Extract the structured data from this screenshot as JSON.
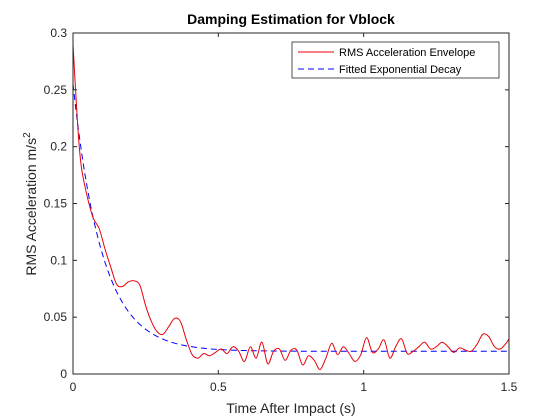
{
  "chart_data": {
    "type": "line",
    "title": "Damping Estimation for Vblock",
    "xlabel": "Time After Impact (s)",
    "ylabel": "RMS Acceleration m/s",
    "ylabel_superscript": "2",
    "xlim": [
      0,
      1.5
    ],
    "ylim": [
      0,
      0.3
    ],
    "xticks": [
      0,
      0.5,
      1,
      1.5
    ],
    "xtick_labels": [
      "0",
      "0.5",
      "1",
      "1.5"
    ],
    "yticks": [
      0,
      0.05,
      0.1,
      0.15,
      0.2,
      0.25,
      0.3
    ],
    "ytick_labels": [
      "0",
      "0.05",
      "0.1",
      "0.15",
      "0.2",
      "0.25",
      "0.3"
    ],
    "grid": false,
    "legend_position": "top-right",
    "series": [
      {
        "name": "RMS Acceleration Envelope",
        "color": "#e8000b",
        "style": "solid",
        "x": [
          0,
          0.01,
          0.02,
          0.03,
          0.05,
          0.07,
          0.09,
          0.11,
          0.13,
          0.15,
          0.17,
          0.19,
          0.21,
          0.23,
          0.25,
          0.27,
          0.29,
          0.31,
          0.33,
          0.35,
          0.37,
          0.39,
          0.41,
          0.43,
          0.45,
          0.47,
          0.49,
          0.51,
          0.53,
          0.55,
          0.57,
          0.59,
          0.61,
          0.63,
          0.65,
          0.67,
          0.69,
          0.71,
          0.73,
          0.75,
          0.77,
          0.79,
          0.81,
          0.83,
          0.85,
          0.87,
          0.89,
          0.91,
          0.93,
          0.95,
          0.97,
          0.99,
          1.01,
          1.03,
          1.05,
          1.07,
          1.09,
          1.11,
          1.13,
          1.15,
          1.17,
          1.19,
          1.21,
          1.23,
          1.25,
          1.27,
          1.29,
          1.31,
          1.33,
          1.35,
          1.37,
          1.39,
          1.41,
          1.43,
          1.45,
          1.47,
          1.49,
          1.5
        ],
        "y": [
          0.29,
          0.245,
          0.205,
          0.18,
          0.155,
          0.137,
          0.128,
          0.11,
          0.094,
          0.079,
          0.077,
          0.081,
          0.082,
          0.078,
          0.06,
          0.046,
          0.037,
          0.035,
          0.042,
          0.049,
          0.046,
          0.03,
          0.017,
          0.014,
          0.018,
          0.016,
          0.019,
          0.022,
          0.018,
          0.024,
          0.02,
          0.011,
          0.024,
          0.014,
          0.028,
          0.009,
          0.02,
          0.022,
          0.012,
          0.021,
          0.021,
          0.008,
          0.016,
          0.012,
          0.004,
          0.014,
          0.027,
          0.017,
          0.024,
          0.018,
          0.011,
          0.017,
          0.032,
          0.019,
          0.022,
          0.03,
          0.014,
          0.024,
          0.031,
          0.018,
          0.02,
          0.024,
          0.028,
          0.022,
          0.024,
          0.028,
          0.024,
          0.019,
          0.023,
          0.021,
          0.02,
          0.026,
          0.035,
          0.033,
          0.024,
          0.022,
          0.027,
          0.031
        ]
      },
      {
        "name": "Fitted Exponential Decay",
        "color": "#0000ff",
        "style": "dashed",
        "model": "y = 0.02 + 0.235 * exp(-x / 0.1)"
      }
    ]
  }
}
